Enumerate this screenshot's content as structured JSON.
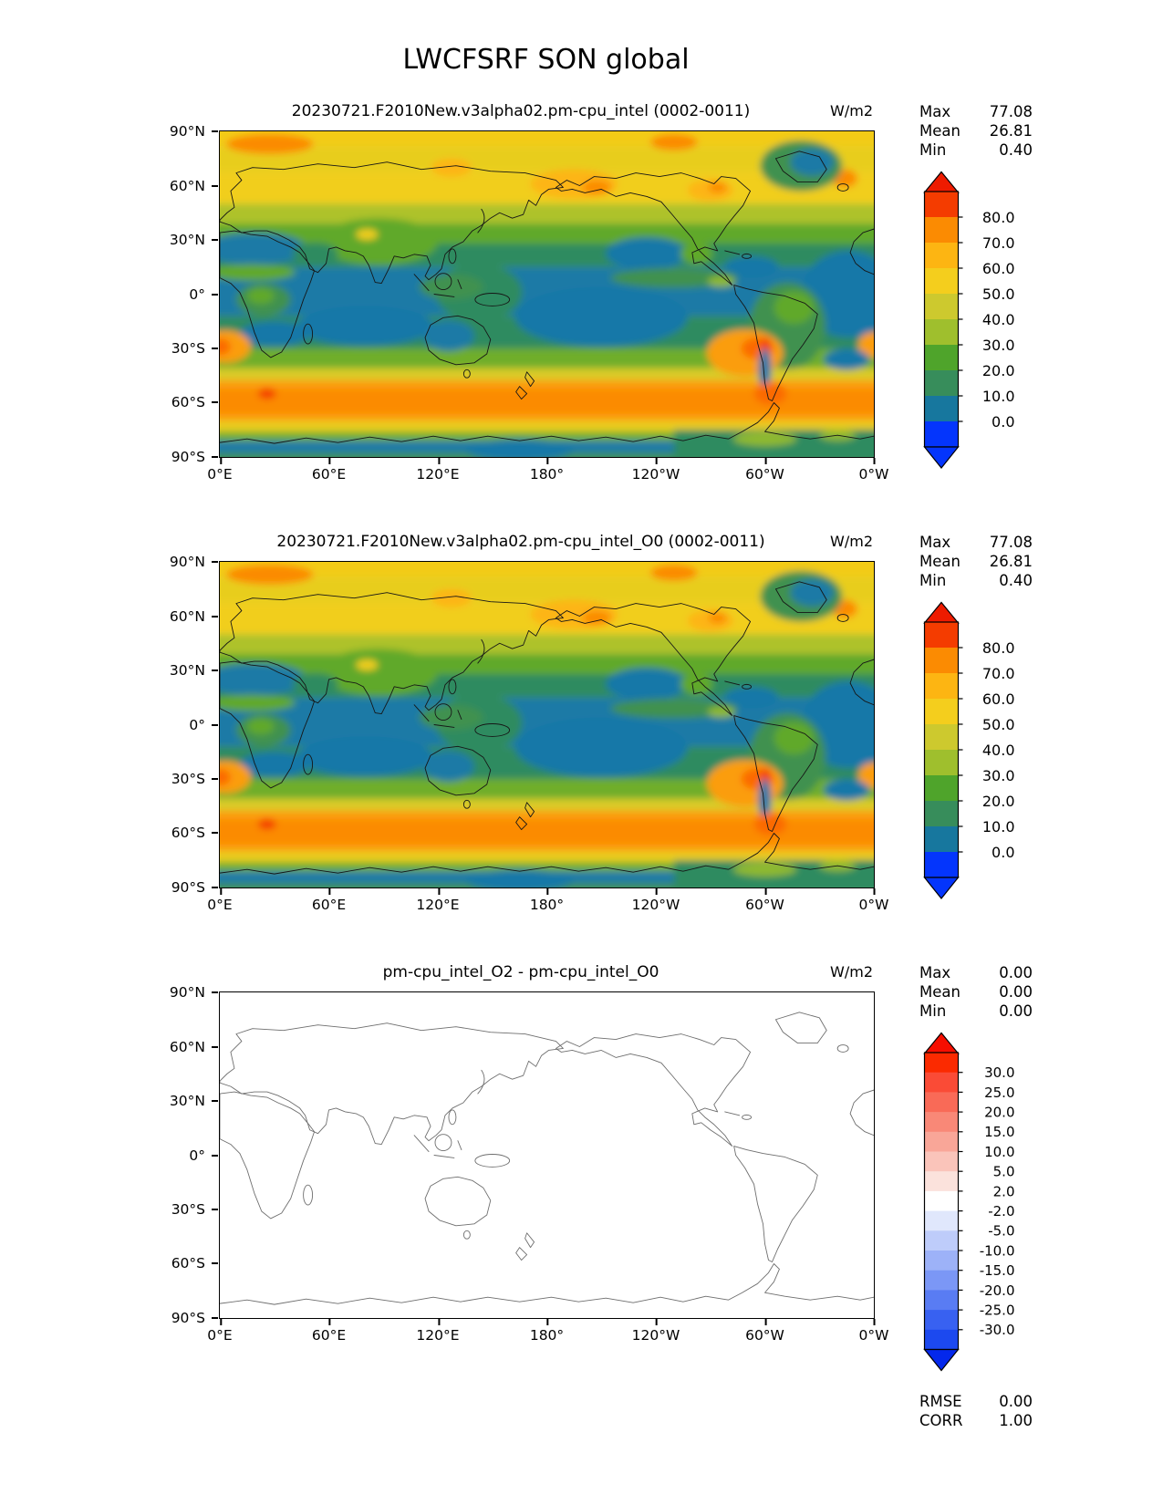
{
  "page_title": "LWCFSRF SON global",
  "axes": {
    "x_ticks": [
      "0°E",
      "60°E",
      "120°E",
      "180°",
      "120°W",
      "60°W",
      "0°W"
    ],
    "y_ticks": [
      "90°N",
      "60°N",
      "30°N",
      "0°",
      "30°S",
      "60°S",
      "90°S"
    ]
  },
  "panels": [
    {
      "title": "20230721.F2010New.v3alpha02.pm-cpu_intel (0002-0011)",
      "units": "W/m2",
      "stats": [
        {
          "label": "Max",
          "value": "77.08"
        },
        {
          "label": "Mean",
          "value": "26.81"
        },
        {
          "label": "Min",
          "value": "0.40"
        }
      ],
      "colorbar": {
        "ticks": [
          "80.0",
          "70.0",
          "60.0",
          "50.0",
          "40.0",
          "30.0",
          "20.0",
          "10.0",
          "0.0"
        ],
        "colors": [
          "#F43C00",
          "#FB8B02",
          "#FDB512",
          "#F4CE1D",
          "#CDC92E",
          "#9FBF2D",
          "#4FA42B",
          "#378D5B",
          "#17779E",
          "#0435FC"
        ],
        "arrow_top": "#EE1B00",
        "arrow_bottom": "#0435FC"
      }
    },
    {
      "title": "20230721.F2010New.v3alpha02.pm-cpu_intel_O0 (0002-0011)",
      "units": "W/m2",
      "stats": [
        {
          "label": "Max",
          "value": "77.08"
        },
        {
          "label": "Mean",
          "value": "26.81"
        },
        {
          "label": "Min",
          "value": "0.40"
        }
      ],
      "colorbar": {
        "ticks": [
          "80.0",
          "70.0",
          "60.0",
          "50.0",
          "40.0",
          "30.0",
          "20.0",
          "10.0",
          "0.0"
        ],
        "colors": [
          "#F43C00",
          "#FB8B02",
          "#FDB512",
          "#F4CE1D",
          "#CDC92E",
          "#9FBF2D",
          "#4FA42B",
          "#378D5B",
          "#17779E",
          "#0435FC"
        ],
        "arrow_top": "#EE1B00",
        "arrow_bottom": "#0435FC"
      }
    },
    {
      "title": "pm-cpu_intel_O2 - pm-cpu_intel_O0",
      "units": "W/m2",
      "stats": [
        {
          "label": "Max",
          "value": "0.00"
        },
        {
          "label": "Mean",
          "value": "0.00"
        },
        {
          "label": "Min",
          "value": "0.00"
        }
      ],
      "extra_stats": [
        {
          "label": "RMSE",
          "value": "0.00"
        },
        {
          "label": "CORR",
          "value": "1.00"
        }
      ],
      "colorbar": {
        "ticks": [
          "30.0",
          "25.0",
          "20.0",
          "15.0",
          "10.0",
          "5.0",
          "2.0",
          "-2.0",
          "-5.0",
          "-10.0",
          "-15.0",
          "-20.0",
          "-25.0",
          "-30.0"
        ],
        "colors": [
          "#FB2A00",
          "#FA4B36",
          "#F96A57",
          "#F98877",
          "#F9A698",
          "#FAC4BA",
          "#FBE2DC",
          "#FFFFFF",
          "#E0E7FC",
          "#BECCFA",
          "#9DB2F8",
          "#7B97F6",
          "#597CF3",
          "#3861F1",
          "#1C49EF"
        ],
        "arrow_top": "#F60E00",
        "arrow_bottom": "#0428EC"
      }
    }
  ],
  "chart_data": [
    {
      "type": "heatmap",
      "subtype": "filled-contour global map, equirectangular, centered on 180°",
      "title": "20230721.F2010New.v3alpha02.pm-cpu_intel (0002-0011)",
      "suptitle": "LWCFSRF SON global",
      "units": "W/m2",
      "xlabel_ticks": [
        "0°E",
        "60°E",
        "120°E",
        "180°",
        "120°W",
        "60°W",
        "0°W"
      ],
      "ylabel_ticks": [
        "90°N",
        "60°N",
        "30°N",
        "0°",
        "30°S",
        "60°S",
        "90°S"
      ],
      "contour_levels": [
        0,
        10,
        20,
        30,
        40,
        50,
        60,
        70,
        80
      ],
      "colorbar_extend": "both",
      "stats": {
        "max": 77.08,
        "mean": 26.81,
        "min": 0.4
      },
      "pattern": "High values (orange, 50-80) over Southern Ocean 40-60S, Arctic and subpolar oceans; low values (blue/teal, 0-20) over subtropical oceans, Sahara, Australia and Antarctic coast; orange maxima off Peru/Chile and Namibia coasts; green mid-values over tropical land and ITCZ"
    },
    {
      "type": "heatmap",
      "subtype": "filled-contour global map, equirectangular, centered on 180°",
      "title": "20230721.F2010New.v3alpha02.pm-cpu_intel_O0 (0002-0011)",
      "units": "W/m2",
      "contour_levels": [
        0,
        10,
        20,
        30,
        40,
        50,
        60,
        70,
        80
      ],
      "colorbar_extend": "both",
      "stats": {
        "max": 77.08,
        "mean": 26.81,
        "min": 0.4
      },
      "pattern": "Visually identical to first panel"
    },
    {
      "type": "heatmap",
      "subtype": "difference map, all zero (blank white field with coastlines)",
      "title": "pm-cpu_intel_O2 - pm-cpu_intel_O0",
      "units": "W/m2",
      "contour_levels": [
        -30,
        -25,
        -20,
        -15,
        -10,
        -5,
        -2,
        2,
        5,
        10,
        15,
        20,
        25,
        30
      ],
      "colorbar_extend": "both",
      "stats": {
        "max": 0.0,
        "mean": 0.0,
        "min": 0.0,
        "rmse": 0.0,
        "corr": 1.0
      }
    }
  ]
}
